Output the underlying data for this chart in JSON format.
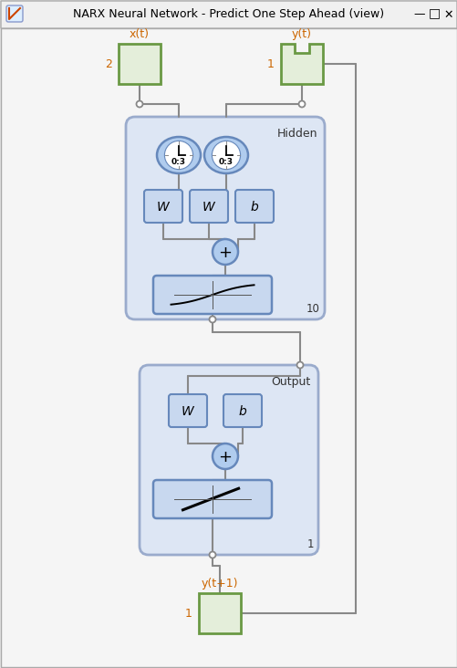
{
  "title": "NARX Neural Network - Predict One Step Ahead (view)",
  "bg_color": "#e8e8e8",
  "window_bg": "#f5f5f5",
  "titlebar_bg": "#f0f0f0",
  "input_x_label": "x(t)",
  "input_x_size": "2",
  "input_y_label": "y(t)",
  "input_y_size": "1",
  "output_label": "y(t+1)",
  "output_size": "1",
  "hidden_label": "Hidden",
  "output_layer_label": "Output",
  "hidden_size_label": "10",
  "output_size_label": "1",
  "delay_label": "0:3",
  "box_fill": "#c8d8ef",
  "box_edge": "#6688bb",
  "clock_fill": "#b0ccee",
  "clock_edge": "#6688bb",
  "sum_fill": "#b0ccee",
  "sum_edge": "#6688bb",
  "input_fill": "#e4eeda",
  "input_edge": "#6a9944",
  "layer_box_fill": "#dde6f4",
  "layer_box_edge": "#9aabcc",
  "connector_color": "#888888",
  "text_color": "#000000",
  "label_color": "#cc6600",
  "layer_text_color": "#333333"
}
